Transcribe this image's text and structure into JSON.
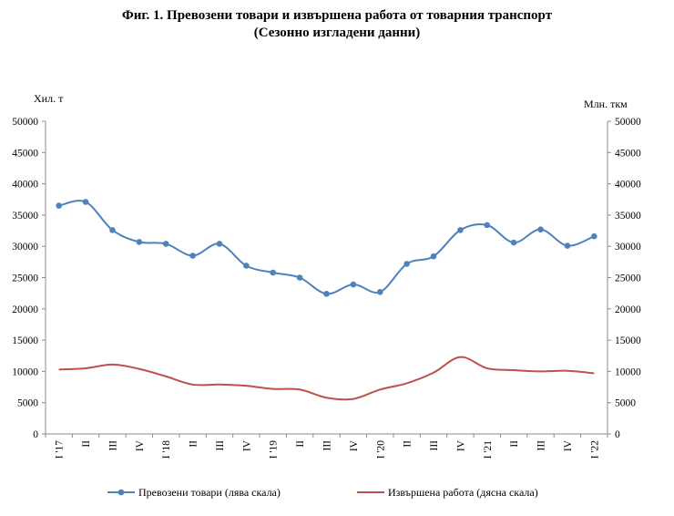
{
  "title": "Фиг. 1. Превозени товари и извършена работа от товарния транспорт",
  "subtitle": "(Сезонно изгладени данни)",
  "chart_data": {
    "type": "line",
    "title": "Фиг. 1. Превозени товари и извършена работа от товарния транспорт",
    "subtitle": "(Сезонно изгладени данни)",
    "left_axis_label": "Хил. т",
    "right_axis_label": "Млн. ткм",
    "ylim_left": [
      0,
      50000
    ],
    "ylim_right": [
      0,
      50000
    ],
    "yticks": [
      "0",
      "5000",
      "10000",
      "15000",
      "20000",
      "25000",
      "30000",
      "35000",
      "40000",
      "45000",
      "50000"
    ],
    "categories": [
      "I '17",
      "II",
      "III",
      "IV",
      "I '18",
      "II",
      "III",
      "IV",
      "I '19",
      "II",
      "III",
      "IV",
      "I '20",
      "II",
      "III",
      "IV",
      "I '21",
      "II",
      "III",
      "IV",
      "I '22"
    ],
    "grid": false,
    "legend_position": "bottom",
    "series": [
      {
        "name": "Превозени товари (лява скала)",
        "axis": "left",
        "color": "#4f81bd",
        "marker": "circle",
        "values": [
          36500,
          37100,
          32600,
          30700,
          30400,
          28500,
          30400,
          26900,
          25800,
          25000,
          22400,
          23900,
          22700,
          27200,
          28400,
          32600,
          33400,
          30600,
          32700,
          30100,
          31600
        ]
      },
      {
        "name": "Извършена работа (дясна скала)",
        "axis": "right",
        "color": "#c0504d",
        "marker": "none",
        "values": [
          10300,
          10500,
          11100,
          10400,
          9200,
          7900,
          7900,
          7700,
          7200,
          7100,
          5800,
          5600,
          7100,
          8100,
          9800,
          12300,
          10500,
          10200,
          10000,
          10100,
          9700
        ]
      }
    ]
  }
}
